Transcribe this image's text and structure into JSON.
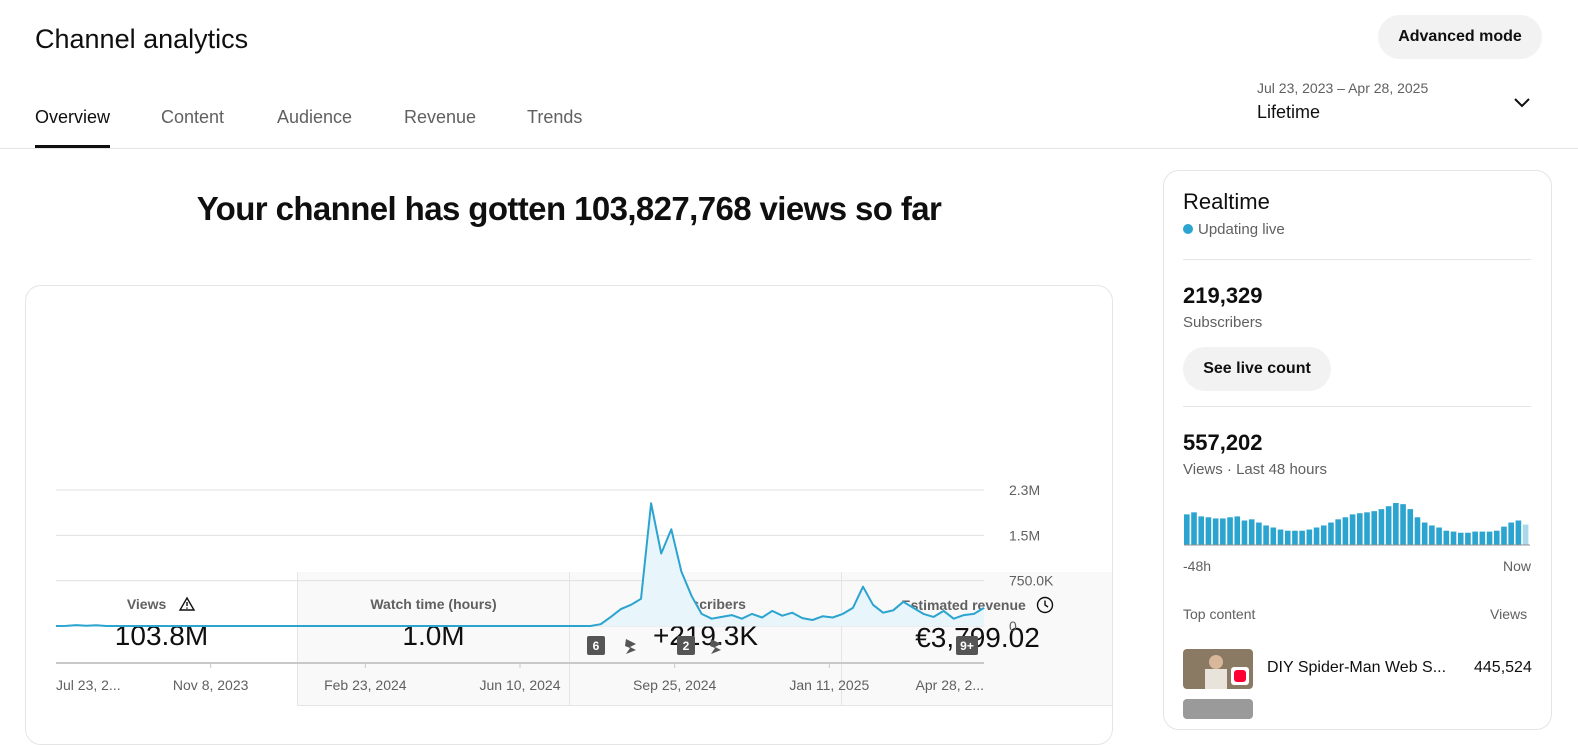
{
  "header": {
    "title": "Channel analytics",
    "advanced_mode": "Advanced mode"
  },
  "tabs": [
    "Overview",
    "Content",
    "Audience",
    "Revenue",
    "Trends"
  ],
  "date_range": {
    "range": "Jul 23, 2023 – Apr 28, 2025",
    "label": "Lifetime"
  },
  "headline": "Your channel has gotten 103,827,768 views so far",
  "metrics": [
    {
      "label": "Views",
      "value": "103.8M"
    },
    {
      "label": "Watch time (hours)",
      "value": "1.0M"
    },
    {
      "label": "Subscribers",
      "value": "+219.3K"
    },
    {
      "label": "Estimated revenue",
      "value": "€3,799.02"
    }
  ],
  "chart_data": {
    "type": "line",
    "color": "#2ba4d0",
    "x_tick_labels": [
      "Jul 23, 2...",
      "Nov 8, 2023",
      "Feb 23, 2024",
      "Jun 10, 2024",
      "Sep 25, 2024",
      "Jan 11, 2025",
      "Apr 28, 2..."
    ],
    "values": [
      0,
      2000,
      15000,
      3000,
      12000,
      0,
      0,
      0,
      0,
      0,
      0,
      0,
      0,
      0,
      0,
      0,
      0,
      0,
      0,
      0,
      0,
      0,
      0,
      0,
      0,
      0,
      0,
      0,
      0,
      0,
      0,
      0,
      0,
      0,
      0,
      0,
      0,
      0,
      0,
      0,
      0,
      0,
      0,
      0,
      0,
      0,
      0,
      0,
      0,
      0,
      0,
      0,
      0,
      0,
      30000,
      150000,
      280000,
      350000,
      450000,
      2030000,
      1200000,
      1600000,
      900000,
      500000,
      200000,
      120000,
      150000,
      180000,
      120000,
      200000,
      140000,
      250000,
      170000,
      220000,
      130000,
      100000,
      160000,
      140000,
      200000,
      300000,
      650000,
      350000,
      220000,
      260000,
      400000,
      300000,
      200000,
      150000,
      250000,
      120000,
      180000,
      200000,
      300000
    ],
    "ylim": [
      0,
      2250000
    ],
    "yticks": [
      0,
      {
        "value": 750000,
        "label": "750.0K"
      },
      {
        "value": 1500000,
        "label": "1.5M"
      },
      {
        "value": 2250000,
        "label": "2.3M"
      }
    ],
    "grid": true,
    "annotations": [
      "6",
      "2",
      "9+"
    ]
  },
  "realtime": {
    "title": "Realtime",
    "status": "Updating live",
    "subscribers": {
      "value": "219,329",
      "label": "Subscribers",
      "button": "See live count"
    },
    "views": {
      "value": "557,202",
      "label": "Views · Last 48 hours"
    },
    "bar_chart": {
      "type": "bar",
      "color": "#2ba4d0",
      "values": [
        10500,
        11200,
        9800,
        9500,
        9100,
        9100,
        9500,
        9800,
        8400,
        8800,
        7700,
        6700,
        6000,
        5300,
        4900,
        4900,
        4900,
        5300,
        6000,
        6700,
        7700,
        8800,
        9500,
        10500,
        10900,
        11200,
        11600,
        12300,
        13300,
        14400,
        14000,
        12300,
        9500,
        7700,
        6700,
        6000,
        4900,
        4600,
        4200,
        4200,
        4600,
        4600,
        4600,
        4900,
        6300,
        7700,
        8400,
        7000
      ],
      "start_label": "-48h",
      "end_label": "Now"
    },
    "top_content": {
      "title": "Top content",
      "metric": "Views",
      "items": [
        {
          "title": "DIY Spider-Man Web S...",
          "views": "445,524"
        }
      ]
    }
  }
}
